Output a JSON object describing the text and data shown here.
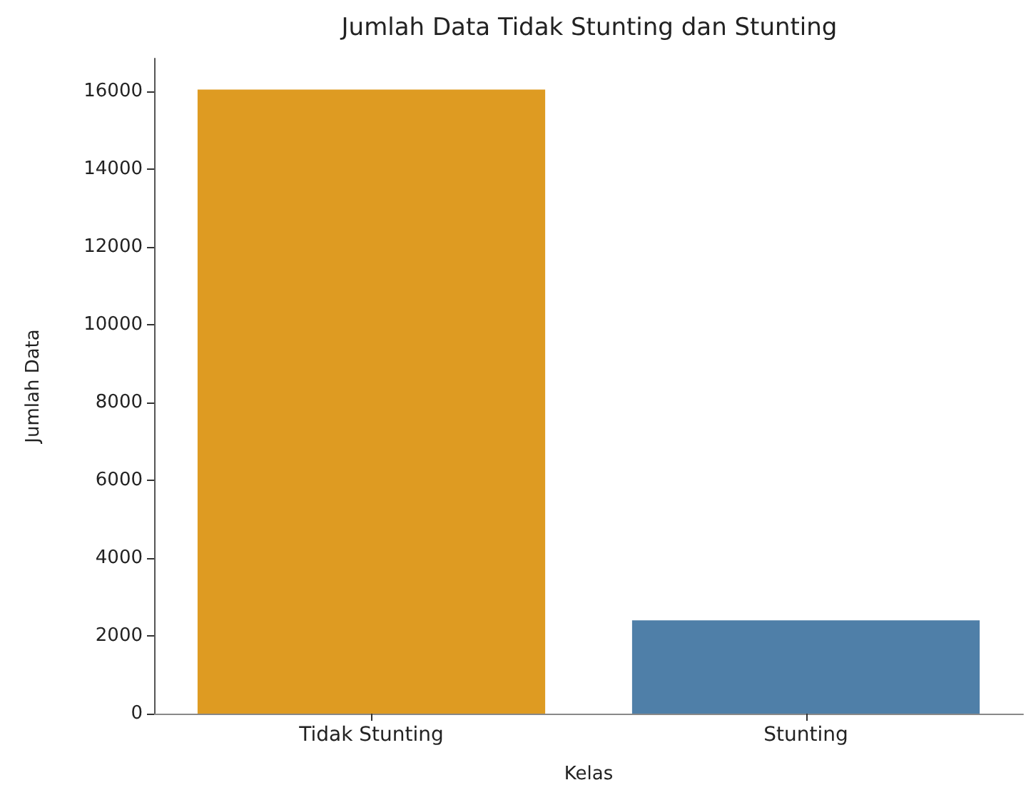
{
  "chart_data": {
    "type": "bar",
    "title": "Jumlah Data Tidak Stunting dan Stunting",
    "xlabel": "Kelas",
    "ylabel": "Jumlah Data",
    "categories": [
      "Tidak Stunting",
      "Stunting"
    ],
    "values": [
      16050,
      2400
    ],
    "colors": [
      "#de9b22",
      "#4f7fa8"
    ],
    "ylim": [
      0,
      16850
    ],
    "yticks": [
      0,
      2000,
      4000,
      6000,
      8000,
      10000,
      12000,
      14000,
      16000
    ],
    "grid": false
  }
}
